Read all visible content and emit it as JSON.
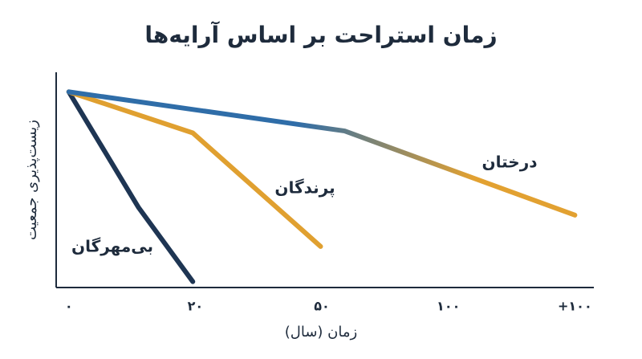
{
  "chart_data": {
    "type": "line",
    "title": "زمان استراحت بر اساس آرایه‌ها",
    "x_label": "زمان (سال)",
    "y_label": "زیست‌پذیری جمعیت",
    "xlim": [
      -0.1,
      4.15
    ],
    "xticks": [
      {
        "value": 0,
        "label": "۰"
      },
      {
        "value": 1,
        "label": "۲۰"
      },
      {
        "value": 2,
        "label": "۵۰"
      },
      {
        "value": 3,
        "label": "۱۰۰"
      },
      {
        "value": 4,
        "label": "+۱۰۰"
      }
    ],
    "ylim": [
      0,
      110
    ],
    "series": [
      {
        "name": "بی‌مهرگان",
        "color": "#1e3553",
        "x": [
          0,
          0.55,
          0.98
        ],
        "values": [
          100,
          41,
          3
        ]
      },
      {
        "name": "پرندگان",
        "color": "#e0a030",
        "x": [
          0,
          0.98,
          1.99
        ],
        "values": [
          100,
          79,
          21
        ]
      },
      {
        "name": "درختان",
        "color": "#2f6da8",
        "gradient_end": "#e2a131",
        "x": [
          0,
          2.18,
          4.0
        ],
        "values": [
          100,
          80,
          37
        ]
      }
    ]
  }
}
